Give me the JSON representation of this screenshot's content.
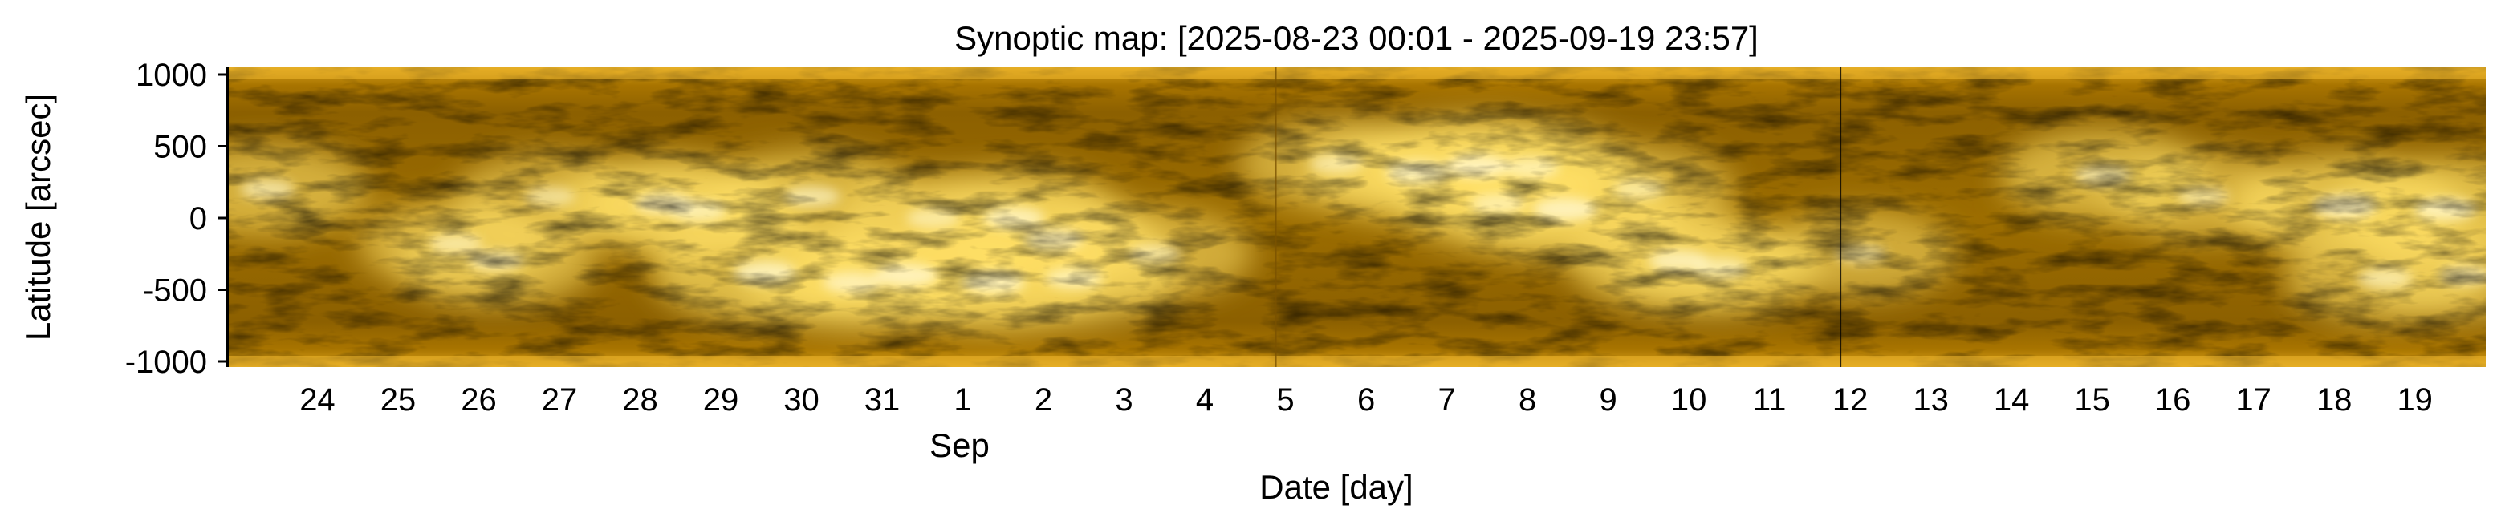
{
  "chart_data": {
    "type": "heatmap",
    "title": "Synoptic map: [2025-08-23 00:01 - 2025-09-19 23:57]",
    "xlabel": "Date [day]",
    "ylabel": "Latitude [arcsec]",
    "x_range": [
      "2025-08-23T00:01",
      "2025-09-19T23:57"
    ],
    "ylim": [
      -1000,
      1000
    ],
    "x_ticks": [
      {
        "date": "2025-08-24",
        "label": "24"
      },
      {
        "date": "2025-08-25",
        "label": "25"
      },
      {
        "date": "2025-08-26",
        "label": "26"
      },
      {
        "date": "2025-08-27",
        "label": "27"
      },
      {
        "date": "2025-08-28",
        "label": "28"
      },
      {
        "date": "2025-08-29",
        "label": "29"
      },
      {
        "date": "2025-08-30",
        "label": "30"
      },
      {
        "date": "2025-08-31",
        "label": "31"
      },
      {
        "date": "2025-09-01",
        "label": "1"
      },
      {
        "date": "2025-09-02",
        "label": "2"
      },
      {
        "date": "2025-09-03",
        "label": "3"
      },
      {
        "date": "2025-09-04",
        "label": "4"
      },
      {
        "date": "2025-09-05",
        "label": "5"
      },
      {
        "date": "2025-09-06",
        "label": "6"
      },
      {
        "date": "2025-09-07",
        "label": "7"
      },
      {
        "date": "2025-09-08",
        "label": "8"
      },
      {
        "date": "2025-09-09",
        "label": "9"
      },
      {
        "date": "2025-09-10",
        "label": "10"
      },
      {
        "date": "2025-09-11",
        "label": "11"
      },
      {
        "date": "2025-09-12",
        "label": "12"
      },
      {
        "date": "2025-09-13",
        "label": "13"
      },
      {
        "date": "2025-09-14",
        "label": "14"
      },
      {
        "date": "2025-09-15",
        "label": "15"
      },
      {
        "date": "2025-09-16",
        "label": "16"
      },
      {
        "date": "2025-09-17",
        "label": "17"
      },
      {
        "date": "2025-09-18",
        "label": "18"
      },
      {
        "date": "2025-09-19",
        "label": "19"
      }
    ],
    "month_label": {
      "date": "2025-09-01",
      "label": "Sep"
    },
    "y_ticks": [
      {
        "value": 1000,
        "label": "1000"
      },
      {
        "value": 500,
        "label": "500"
      },
      {
        "value": 0,
        "label": "0"
      },
      {
        "value": -500,
        "label": "-500"
      },
      {
        "value": -1000,
        "label": "-1000"
      }
    ],
    "colormap": {
      "dark": "#4a3200",
      "mid": "#b58300",
      "bright": "#ffe066",
      "highlight": "#fff6c8"
    },
    "marker_lines": [
      {
        "date": "2025-09-12T00:00",
        "color": "#000000"
      },
      {
        "date": "2025-09-05T00:00",
        "color": "#7a5200"
      }
    ],
    "bright_regions": [
      {
        "date": "2025-08-23T12:00",
        "latitude": 200,
        "intensity": 0.6
      },
      {
        "date": "2025-08-25T20:00",
        "latitude": -180,
        "intensity": 0.55
      },
      {
        "date": "2025-08-26T08:00",
        "latitude": -300,
        "intensity": 0.6
      },
      {
        "date": "2025-08-27T00:00",
        "latitude": 150,
        "intensity": 0.5
      },
      {
        "date": "2025-08-28T10:00",
        "latitude": 100,
        "intensity": 0.75
      },
      {
        "date": "2025-08-28T20:00",
        "latitude": 50,
        "intensity": 0.7
      },
      {
        "date": "2025-08-29T16:00",
        "latitude": -380,
        "intensity": 0.85
      },
      {
        "date": "2025-08-30T06:00",
        "latitude": 150,
        "intensity": 0.65
      },
      {
        "date": "2025-08-30T18:00",
        "latitude": -450,
        "intensity": 0.75
      },
      {
        "date": "2025-08-31T10:00",
        "latitude": -400,
        "intensity": 0.9
      },
      {
        "date": "2025-08-31T18:00",
        "latitude": 0,
        "intensity": 0.55
      },
      {
        "date": "2025-09-01T12:00",
        "latitude": -450,
        "intensity": 0.85
      },
      {
        "date": "2025-09-01T18:00",
        "latitude": 0,
        "intensity": 0.8
      },
      {
        "date": "2025-09-02T06:00",
        "latitude": -150,
        "intensity": 0.75
      },
      {
        "date": "2025-09-02T12:00",
        "latitude": -420,
        "intensity": 0.7
      },
      {
        "date": "2025-09-03T12:00",
        "latitude": -250,
        "intensity": 0.55
      },
      {
        "date": "2025-09-05T18:00",
        "latitude": 380,
        "intensity": 0.55
      },
      {
        "date": "2025-09-06T18:00",
        "latitude": 320,
        "intensity": 0.85
      },
      {
        "date": "2025-09-07T12:00",
        "latitude": 360,
        "intensity": 0.9
      },
      {
        "date": "2025-09-07T18:00",
        "latitude": 100,
        "intensity": 0.6
      },
      {
        "date": "2025-09-08T14:00",
        "latitude": 60,
        "intensity": 0.9
      },
      {
        "date": "2025-09-08T04:00",
        "latitude": 350,
        "intensity": 0.65
      },
      {
        "date": "2025-09-09T12:00",
        "latitude": 200,
        "intensity": 0.5
      },
      {
        "date": "2025-09-10T00:00",
        "latitude": -300,
        "intensity": 0.8
      },
      {
        "date": "2025-09-10T12:00",
        "latitude": -350,
        "intensity": 0.65
      },
      {
        "date": "2025-09-12T06:00",
        "latitude": -250,
        "intensity": 0.5
      },
      {
        "date": "2025-09-15T06:00",
        "latitude": 300,
        "intensity": 0.65
      },
      {
        "date": "2025-09-16T12:00",
        "latitude": 150,
        "intensity": 0.5
      },
      {
        "date": "2025-09-18T06:00",
        "latitude": 80,
        "intensity": 0.9
      },
      {
        "date": "2025-09-18T18:00",
        "latitude": -420,
        "intensity": 0.6
      },
      {
        "date": "2025-09-19T12:00",
        "latitude": 60,
        "intensity": 0.85
      },
      {
        "date": "2025-09-19T18:00",
        "latitude": -400,
        "intensity": 0.55
      }
    ]
  }
}
